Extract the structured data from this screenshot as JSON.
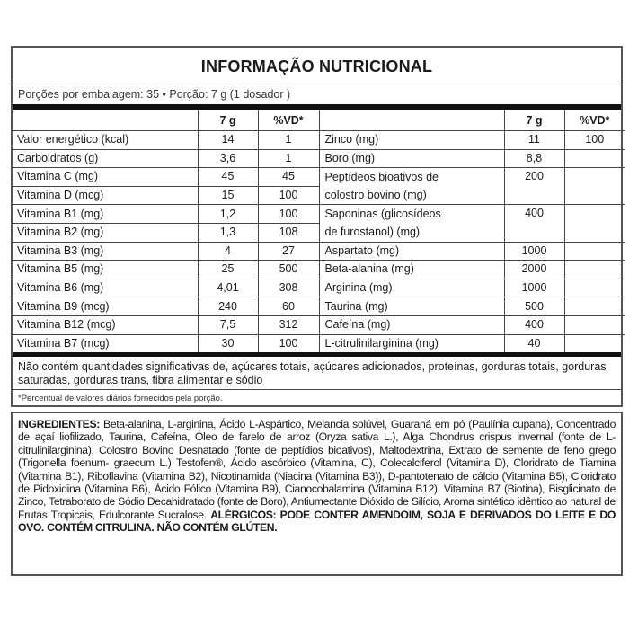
{
  "title": "INFORMAÇÃO NUTRICIONAL",
  "portion": "Porções por embalagem: 35 • Porção: 7 g (1 dosador )",
  "headers": {
    "amount": "7 g",
    "vd": "%VD*"
  },
  "rows": [
    {
      "l": "Valor energético (kcal)",
      "la": "14",
      "lv": "1",
      "r": "Zinco (mg)",
      "ra": "11",
      "rv": "100"
    },
    {
      "l": "Carboidratos (g)",
      "la": "3,6",
      "lv": "1",
      "r": "Boro (mg)",
      "ra": "8,8",
      "rv": ""
    },
    {
      "l": "Vitamina C (mg)",
      "la": "45",
      "lv": "45",
      "r": "Peptídeos bioativos de",
      "r2": "colostro bovino (mg)",
      "ra": "200",
      "rv": "",
      "span": 2
    },
    {
      "l": "Vitamina D (mcg)",
      "la": "15",
      "lv": "100"
    },
    {
      "l": "Vitamina B1 (mg)",
      "la": "1,2",
      "lv": "100",
      "r": "Saponinas (glicosídeos",
      "r2": "de furostanol) (mg)",
      "ra": "400",
      "rv": "",
      "span": 2
    },
    {
      "l": "Vitamina B2 (mg)",
      "la": "1,3",
      "lv": "108"
    },
    {
      "l": "Vitamina B3 (mg)",
      "la": "4",
      "lv": "27",
      "r": "Aspartato (mg)",
      "ra": "1000",
      "rv": ""
    },
    {
      "l": "Vitamina B5 (mg)",
      "la": "25",
      "lv": "500",
      "r": "Beta-alanina (mg)",
      "ra": "2000",
      "rv": ""
    },
    {
      "l": "Vitamina B6 (mg)",
      "la": "4,01",
      "lv": "308",
      "r": "Arginina (mg)",
      "ra": "1000",
      "rv": ""
    },
    {
      "l": "Vitamina B9 (mcg)",
      "la": "240",
      "lv": "60",
      "r": "Taurina (mg)",
      "ra": "500",
      "rv": ""
    },
    {
      "l": "Vitamina B12 (mcg)",
      "la": "7,5",
      "lv": "312",
      "r": "Cafeína (mg)",
      "ra": "400",
      "rv": ""
    },
    {
      "l": "Vitamina B7 (mcg)",
      "la": "30",
      "lv": "100",
      "r": "L-citrulinilarginina (mg)",
      "ra": "40",
      "rv": ""
    }
  ],
  "notes": "Não contém quantidades significativas de, açúcares totais, açúcares adicionados, proteínas, gorduras totais, gorduras saturadas, gorduras trans, fibra alimentar e sódio",
  "footnote": "*Percentual de valores diários fornecidos pela porção.",
  "ingredients": {
    "label": "INGREDIENTES:",
    "text": " Beta-alanina, L-arginina, Ácido L-Aspártico, Melancia solúvel, Guaraná em pó (Paulínia cupana), Concentrado de açaí liofilizado, Taurina, Cafeína, Óleo de farelo de arroz (Oryza sativa L.), Alga Chondrus crispus invernal (fonte de L-citrulinilarginina), Colostro Bovino Desnatado (fonte de peptídios bioativos), Maltodextrina, Extrato de semente de feno grego (Trigonella foenum- graecum L.) Testofen®, Ácido ascórbico (Vitamina, C), Colecalciferol (Vitamina D), Cloridrato de Tiamina (Vitamina B1), Riboflavina (Vitamina B2), Nicotinamida (Niacina (Vitamina B3)), D-pantotenato de cálcio (Vitamina B5), Cloridrato de Pidoxidina (Vitamina B6), Ácido Fólico (Vitamina B9), Cianocobalamina (Vitamina B12), Vitamina B7 (Biotina), Bisglicinato de Zinco, Tetraborato de Sódio Decahidratado (fonte de Boro), Antiumectante Dióxido de Silício, Aroma sintético idêntico ao natural de Frutas Tropicais, Edulcorante Sucralose. ",
    "allergens": "ALÉRGICOS: PODE CONTER AMENDOIM, SOJA E DERIVADOS DO LEITE E DO OVO. CONTÉM CITRULINA. NÃO CONTÉM GLÚTEN."
  }
}
